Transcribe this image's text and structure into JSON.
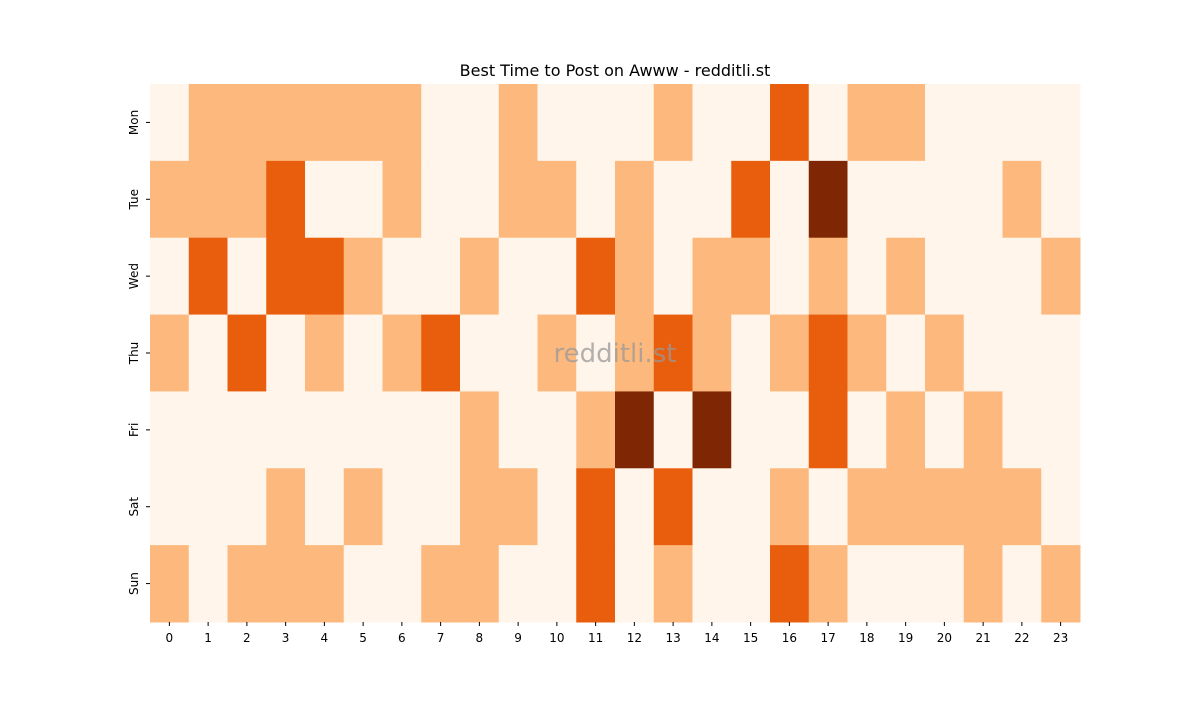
{
  "chart_data": {
    "type": "heatmap",
    "title": "Best Time to Post on Awww - redditli.st",
    "watermark": "redditli.st",
    "x": [
      0,
      1,
      2,
      3,
      4,
      5,
      6,
      7,
      8,
      9,
      10,
      11,
      12,
      13,
      14,
      15,
      16,
      17,
      18,
      19,
      20,
      21,
      22,
      23
    ],
    "y": [
      "Mon",
      "Tue",
      "Wed",
      "Thu",
      "Fri",
      "Sat",
      "Sun"
    ],
    "colorscale": [
      "#fff5eb",
      "#fdb97d",
      "#e95e0d",
      "#7f2704"
    ],
    "values": [
      [
        0,
        1,
        1,
        1,
        1,
        1,
        1,
        0,
        0,
        1,
        0,
        0,
        0,
        1,
        0,
        0,
        2,
        0,
        1,
        1,
        0,
        0,
        0,
        0
      ],
      [
        1,
        1,
        1,
        2,
        0,
        0,
        1,
        0,
        0,
        1,
        1,
        0,
        1,
        0,
        0,
        2,
        0,
        3,
        0,
        0,
        0,
        0,
        1,
        0
      ],
      [
        0,
        2,
        0,
        2,
        2,
        1,
        0,
        0,
        1,
        0,
        0,
        2,
        1,
        0,
        1,
        1,
        0,
        1,
        0,
        1,
        0,
        0,
        0,
        1
      ],
      [
        1,
        0,
        2,
        0,
        1,
        0,
        1,
        2,
        0,
        0,
        1,
        0,
        1,
        2,
        1,
        0,
        1,
        2,
        1,
        0,
        1,
        0,
        0,
        0
      ],
      [
        0,
        0,
        0,
        0,
        0,
        0,
        0,
        0,
        1,
        0,
        0,
        1,
        3,
        0,
        3,
        0,
        0,
        2,
        0,
        1,
        0,
        1,
        0,
        0
      ],
      [
        0,
        0,
        0,
        1,
        0,
        1,
        0,
        0,
        1,
        1,
        0,
        2,
        0,
        2,
        0,
        0,
        1,
        0,
        1,
        1,
        1,
        1,
        1,
        0
      ],
      [
        1,
        0,
        1,
        1,
        1,
        0,
        0,
        1,
        1,
        0,
        0,
        2,
        0,
        1,
        0,
        0,
        2,
        1,
        0,
        0,
        0,
        1,
        0,
        1
      ]
    ]
  }
}
